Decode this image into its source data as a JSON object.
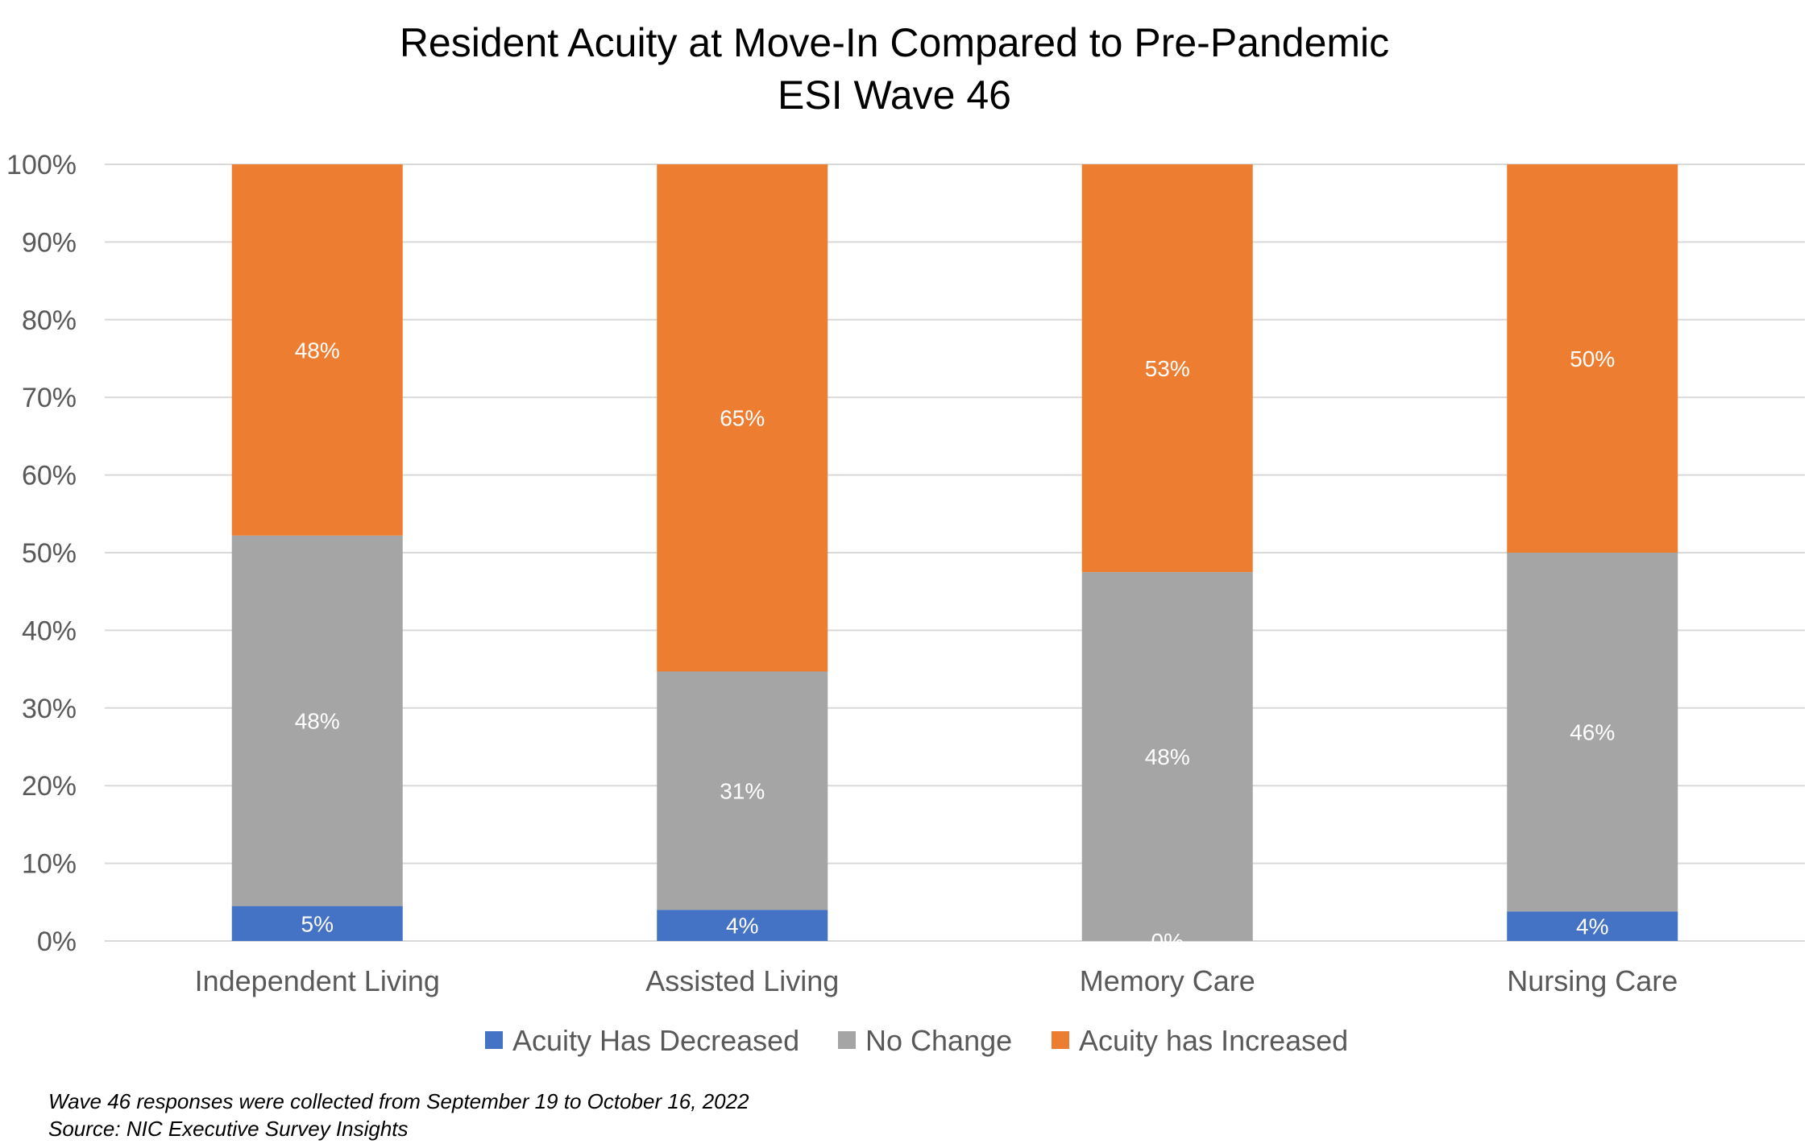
{
  "chart_data": {
    "type": "bar",
    "stacked": true,
    "title": "Resident Acuity at Move-In Compared to Pre-Pandemic",
    "subtitle": "ESI Wave 46",
    "categories": [
      "Independent Living",
      "Assisted Living",
      "Memory Care",
      "Nursing Care"
    ],
    "series": [
      {
        "name": "Acuity Has Decreased",
        "color": "#4472C4",
        "values": [
          4.5,
          4,
          0,
          3.8
        ],
        "labels": [
          "5%",
          "4%",
          "0%",
          "4%"
        ]
      },
      {
        "name": "No Change",
        "color": "#A5A5A5",
        "values": [
          47.7,
          30.7,
          47.5,
          46.2
        ],
        "labels": [
          "48%",
          "31%",
          "48%",
          "46%"
        ]
      },
      {
        "name": "Acuity has Increased",
        "color": "#ED7D31",
        "values": [
          47.8,
          65.3,
          52.5,
          50
        ],
        "labels": [
          "48%",
          "65%",
          "53%",
          "50%"
        ]
      }
    ],
    "ylim": [
      0,
      100
    ],
    "yticks": [
      "0%",
      "10%",
      "20%",
      "30%",
      "40%",
      "50%",
      "60%",
      "70%",
      "80%",
      "90%",
      "100%"
    ],
    "grid": true,
    "legend": "bottom",
    "xlabel": "",
    "ylabel": ""
  },
  "footnote": {
    "line1": "Wave 46 responses were collected from September 19 to October 16, 2022",
    "line2": "Source: NIC Executive Survey Insights"
  }
}
